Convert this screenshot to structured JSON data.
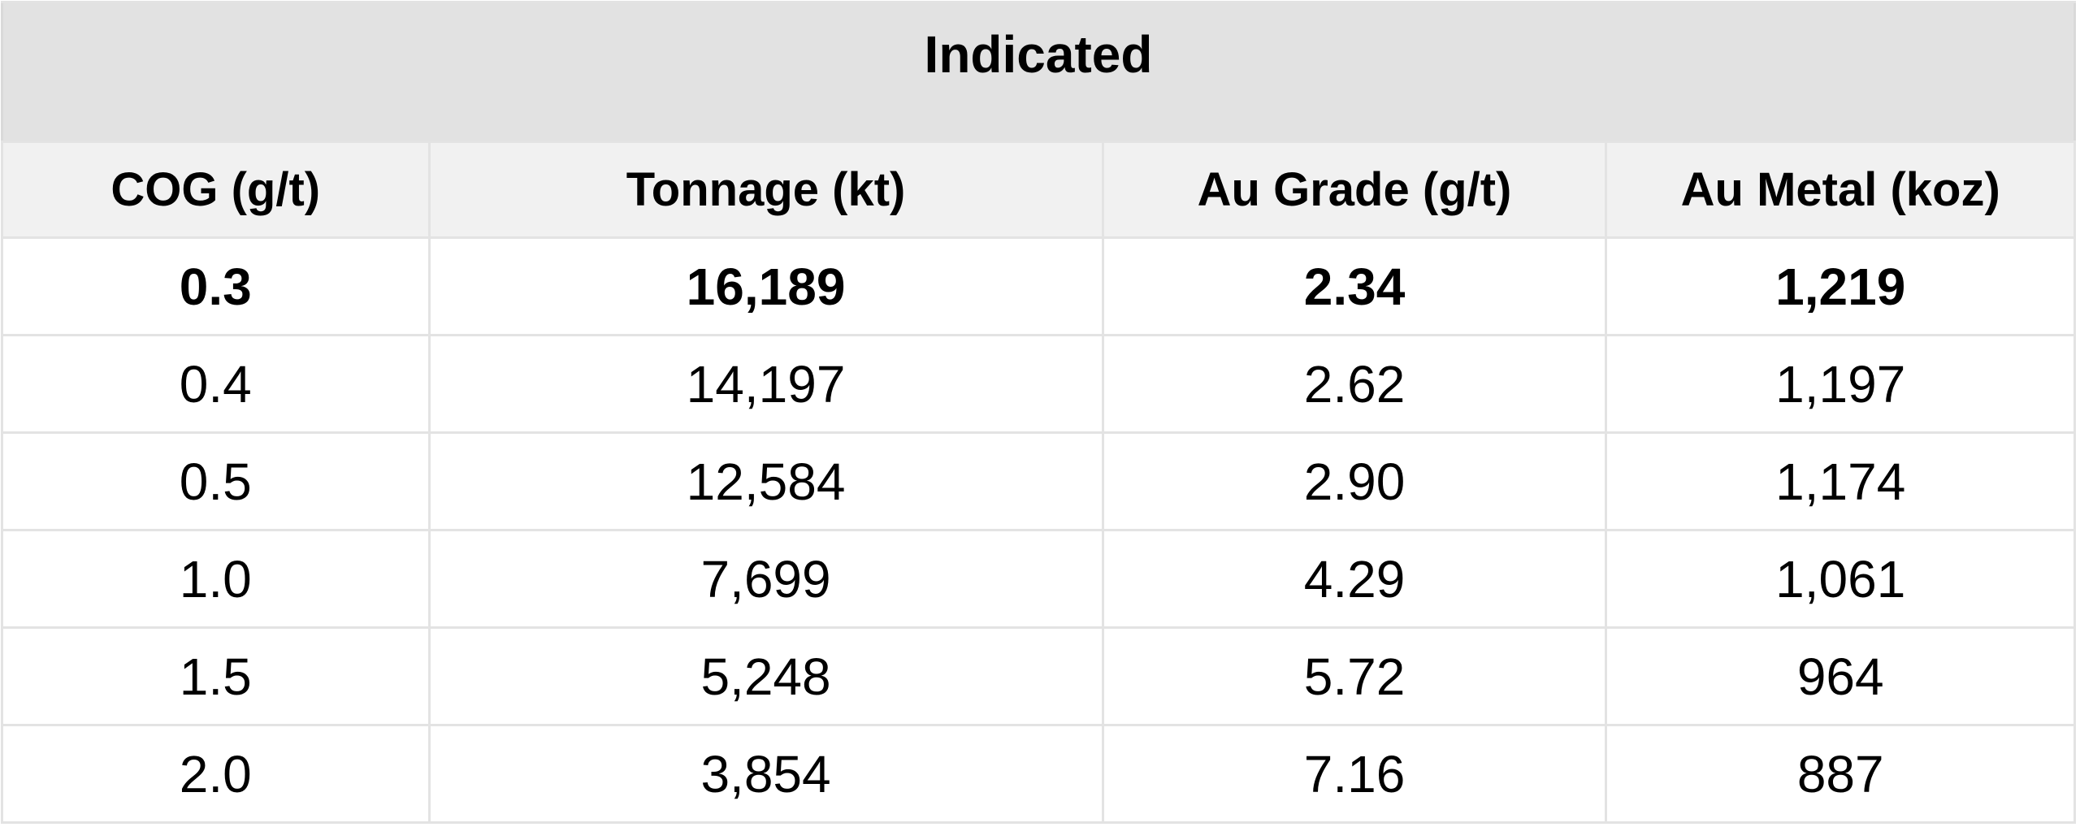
{
  "table": {
    "title": "Indicated",
    "columns": [
      "COG (g/t)",
      "Tonnage (kt)",
      "Au Grade (g/t)",
      "Au Metal (koz)"
    ],
    "rows": [
      {
        "cog": "0.3",
        "tonnage": "16,189",
        "grade": "2.34",
        "metal": "1,219"
      },
      {
        "cog": "0.4",
        "tonnage": "14,197",
        "grade": "2.62",
        "metal": "1,197"
      },
      {
        "cog": "0.5",
        "tonnage": "12,584",
        "grade": "2.90",
        "metal": "1,174"
      },
      {
        "cog": "1.0",
        "tonnage": "7,699",
        "grade": "4.29",
        "metal": "1,061"
      },
      {
        "cog": "1.5",
        "tonnage": "5,248",
        "grade": "5.72",
        "metal": "964"
      },
      {
        "cog": "2.0",
        "tonnage": "3,854",
        "grade": "7.16",
        "metal": "887"
      }
    ]
  },
  "colors": {
    "title_band_bg": "#e2e2e2",
    "header_band_bg": "#f1f1f1",
    "row_bg": "#ffffff",
    "grid_border": "#e3e3e3",
    "outer_border": "#d9d9d9",
    "text": "#000000"
  },
  "chart_data": {
    "type": "table",
    "title": "Indicated",
    "columns": [
      "COG (g/t)",
      "Tonnage (kt)",
      "Au Grade (g/t)",
      "Au Metal (koz)"
    ],
    "rows": [
      [
        0.3,
        16189,
        2.34,
        1219
      ],
      [
        0.4,
        14197,
        2.62,
        1197
      ],
      [
        0.5,
        12584,
        2.9,
        1174
      ],
      [
        1.0,
        7699,
        4.29,
        1061
      ],
      [
        1.5,
        5248,
        5.72,
        964
      ],
      [
        2.0,
        3854,
        7.16,
        887
      ]
    ],
    "notes": "Grade-tonnage table at increasing cut-off grades; first data row (COG 0.3) rendered in bold"
  }
}
